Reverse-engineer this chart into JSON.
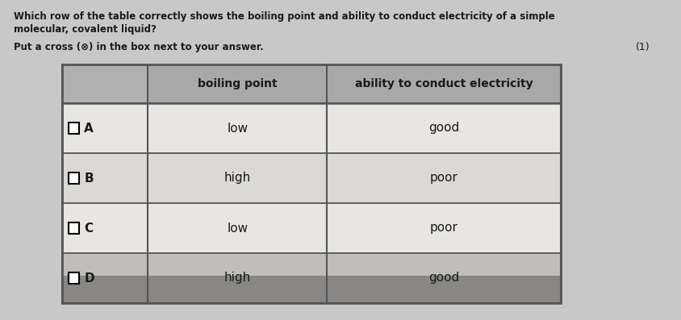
{
  "question_line1": "Which row of the table correctly shows the boiling point and ability to conduct electricity of a simple",
  "question_line2": "molecular, covalent liquid?",
  "instruction": "Put a cross (⊗) in the box next to your answer.",
  "marks": "(1)",
  "header_col1": "boiling point",
  "header_col2": "ability to conduct electricity",
  "rows": [
    {
      "label": "A",
      "col1": "low",
      "col2": "good"
    },
    {
      "label": "B",
      "col1": "high",
      "col2": "poor"
    },
    {
      "label": "C",
      "col1": "low",
      "col2": "poor"
    },
    {
      "label": "D",
      "col1": "high",
      "col2": "good"
    }
  ],
  "page_bg": "#c8c8c8",
  "header_bg": "#a8a8a8",
  "label_col_bg": "#b0b0b0",
  "row_bg_A": "#e8e6e2",
  "row_bg_B": "#dbd9d5",
  "row_bg_C": "#e8e6e2",
  "row_bg_D": "#c0bebb",
  "shadow_color": "#5a5a5a",
  "border_color": "#555555",
  "text_color": "#1a1a1a"
}
